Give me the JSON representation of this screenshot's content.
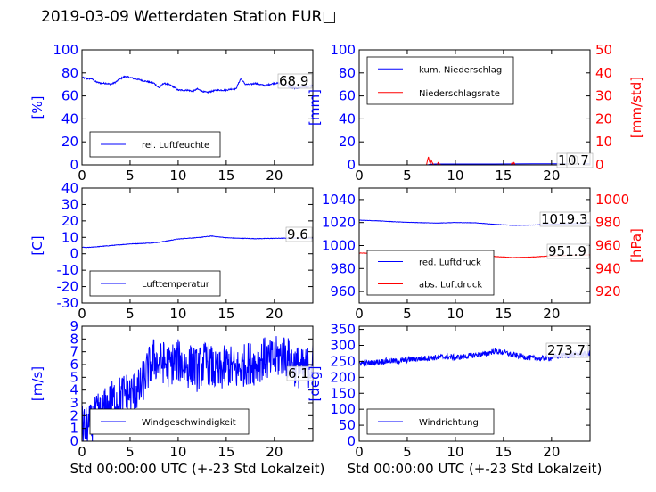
{
  "title": "2019-03-09 Wetterdaten Station FUR□",
  "chart_data": [
    {
      "type": "line",
      "xlabel": "",
      "ylabel": "[%]",
      "xlim": [
        0,
        24
      ],
      "xticks": [
        0,
        5,
        10,
        15,
        20
      ],
      "ylim": [
        0,
        100
      ],
      "yticks": [
        0,
        20,
        40,
        60,
        80,
        100
      ],
      "grid": false,
      "legend": "lower-left",
      "value_label": "68.9",
      "series": [
        {
          "name": "rel. Luftfeuchte",
          "color": "#0000ff",
          "noise": 0.6,
          "x": [
            0,
            0.5,
            1,
            1.5,
            2,
            2.5,
            3,
            3.5,
            4,
            4.5,
            5,
            5.5,
            6,
            6.5,
            7,
            7.5,
            8,
            8.5,
            9,
            9.5,
            10,
            10.5,
            11,
            11.5,
            12,
            12.5,
            13,
            13.5,
            14,
            14.5,
            15,
            15.5,
            16,
            16.5,
            17,
            17.5,
            18,
            18.5,
            19,
            19.5,
            20,
            20.5,
            21,
            21.5,
            22,
            22.5,
            23,
            23.5,
            24
          ],
          "y": [
            76,
            75,
            75,
            72,
            71,
            71,
            70,
            72,
            75,
            77,
            76,
            75,
            74,
            73,
            72,
            71,
            67,
            71,
            70,
            68,
            65,
            65,
            65,
            64,
            66,
            64,
            63,
            64,
            65,
            65,
            65,
            66,
            66,
            75,
            70,
            70,
            71,
            70,
            69,
            70,
            71,
            71,
            70,
            68,
            67,
            67,
            68,
            68,
            69
          ]
        }
      ]
    },
    {
      "type": "line",
      "xlabel": "",
      "ylabel": "[mm]",
      "y2label": "[mm/std]",
      "xlim": [
        0,
        24
      ],
      "xticks": [
        0,
        5,
        10,
        15,
        20
      ],
      "ylim": [
        0,
        100
      ],
      "yticks": [
        0,
        20,
        40,
        60,
        80,
        100
      ],
      "y2lim": [
        0,
        50
      ],
      "y2ticks": [
        0,
        10,
        20,
        30,
        40,
        50
      ],
      "grid": false,
      "legend": "top-left",
      "value_label": "1.0",
      "value_label_2": "0.7",
      "series": [
        {
          "name": "kum. Niederschlag",
          "color": "#0000ff",
          "axis": "left",
          "x": [
            0,
            3,
            5,
            7,
            7.2,
            7.4,
            7.6,
            8,
            10,
            12,
            14,
            16,
            18,
            20,
            22,
            24
          ],
          "y": [
            0,
            0,
            0,
            0,
            0.2,
            0.5,
            0.7,
            0.8,
            0.8,
            0.8,
            0.8,
            0.9,
            1.0,
            1.0,
            1.0,
            1.0
          ]
        },
        {
          "name": "Niederschlagsrate",
          "color": "#ff0000",
          "axis": "right",
          "x": [
            0,
            5,
            7,
            7.1,
            7.2,
            7.3,
            7.4,
            7.5,
            7.6,
            7.7,
            7.8,
            8.1,
            8.2,
            8.4,
            8.5,
            9,
            12,
            15.8,
            15.9,
            16,
            16.1,
            16.2,
            18,
            20,
            22,
            24
          ],
          "y": [
            0,
            0,
            0,
            2,
            3.5,
            1.5,
            0.5,
            2,
            1,
            0.3,
            0,
            0,
            1,
            0.2,
            0,
            0,
            0,
            0,
            1.2,
            0.4,
            1,
            0,
            0,
            0,
            0,
            0
          ]
        }
      ]
    },
    {
      "type": "line",
      "xlabel": "",
      "ylabel": "[C]",
      "xlim": [
        0,
        24
      ],
      "xticks": [
        0,
        5,
        10,
        15,
        20
      ],
      "ylim": [
        -30,
        40
      ],
      "yticks": [
        -30,
        -20,
        -10,
        0,
        10,
        20,
        30,
        40
      ],
      "grid": false,
      "legend": "lower-left",
      "value_label": "9.6",
      "series": [
        {
          "name": "Lufttemperatur",
          "color": "#0000ff",
          "noise": 0.15,
          "x": [
            0,
            0.5,
            1,
            2,
            3,
            4,
            5,
            6,
            7,
            8,
            9,
            10,
            11,
            12,
            13,
            13.5,
            14,
            15,
            16,
            17,
            18,
            19,
            20,
            21,
            22,
            23,
            24
          ],
          "y": [
            4,
            3.8,
            4,
            4.5,
            5,
            5.5,
            6,
            6.2,
            6.5,
            7,
            8,
            9,
            9.5,
            9.8,
            10.5,
            10.8,
            10.4,
            9.8,
            9.5,
            9.4,
            9.2,
            9.3,
            9.4,
            9.5,
            9.6,
            9.5,
            9.6
          ]
        }
      ]
    },
    {
      "type": "line",
      "xlabel": "",
      "ylabel": "",
      "y2label": "[hPa]",
      "xlim": [
        0,
        24
      ],
      "xticks": [
        0,
        5,
        10,
        15,
        20
      ],
      "ylim": [
        950,
        1050
      ],
      "yticks": [
        960,
        980,
        1000,
        1020,
        1040
      ],
      "y2lim": [
        910,
        1010
      ],
      "y2ticks": [
        920,
        940,
        960,
        980,
        1000
      ],
      "grid": false,
      "legend": "lower-left",
      "value_label": "1019.3",
      "value_label_2": "951.9",
      "series": [
        {
          "name": "red. Luftdruck",
          "color": "#0000ff",
          "axis": "left",
          "noise": 0.15,
          "x": [
            0,
            2,
            4,
            6,
            8,
            10,
            12,
            14,
            16,
            18,
            20,
            22,
            24
          ],
          "y": [
            1022,
            1021.5,
            1020.5,
            1020,
            1019.5,
            1020,
            1019.8,
            1018.5,
            1017.5,
            1017.8,
            1018.5,
            1019,
            1019.3
          ]
        },
        {
          "name": "abs. Luftdruck",
          "color": "#ff0000",
          "axis": "right",
          "noise": 0.15,
          "x": [
            0,
            2,
            4,
            6,
            8,
            10,
            12,
            14,
            16,
            18,
            20,
            22,
            24
          ],
          "y": [
            953.5,
            953,
            952.5,
            952,
            951.5,
            952,
            951.5,
            950.5,
            949.5,
            950,
            951,
            951.5,
            951.9
          ]
        }
      ]
    },
    {
      "type": "line",
      "xlabel": "Std 00:00:00 UTC (+-23 Std Lokalzeit)",
      "ylabel": "[m/s]",
      "xlim": [
        0,
        24
      ],
      "xticks": [
        0,
        5,
        10,
        15,
        20
      ],
      "ylim": [
        0,
        9
      ],
      "yticks": [
        0,
        1,
        2,
        3,
        4,
        5,
        6,
        7,
        8,
        9
      ],
      "grid": false,
      "legend": "lower-left",
      "value_label": "6.1",
      "series": [
        {
          "name": "Windgeschwindigkeit",
          "color": "#0000ff",
          "noise": 1.7,
          "x": [
            0,
            0.5,
            1,
            1.5,
            2,
            2.5,
            3,
            3.5,
            4,
            4.5,
            5,
            5.5,
            6,
            6.5,
            7,
            7.5,
            8,
            8.5,
            9,
            9.5,
            10,
            10.5,
            11,
            11.5,
            12,
            12.5,
            13,
            13.5,
            14,
            14.5,
            15,
            15.5,
            16,
            16.5,
            17,
            17.5,
            18,
            18.5,
            19,
            19.5,
            20,
            20.5,
            21,
            21.5,
            22,
            22.5,
            23,
            23.5,
            24
          ],
          "y": [
            1.2,
            1,
            1.3,
            2,
            2.2,
            2.6,
            3,
            3.3,
            3.5,
            3.8,
            3.6,
            3.9,
            4,
            5,
            5.8,
            6.5,
            6,
            6.2,
            5.8,
            6.2,
            6.3,
            6,
            5.8,
            6,
            5.5,
            6,
            6.2,
            5.8,
            5.2,
            5.5,
            6,
            5.8,
            5.5,
            5.8,
            6,
            6.2,
            6,
            6.3,
            6.5,
            6.2,
            6.5,
            6.6,
            6.8,
            6.4,
            6,
            5.8,
            5.5,
            5.8,
            6.1
          ]
        }
      ]
    },
    {
      "type": "line",
      "xlabel": "Std 00:00:00 UTC (+-23 Std Lokalzeit)",
      "ylabel": "[deg]",
      "xlim": [
        0,
        24
      ],
      "xticks": [
        0,
        5,
        10,
        15,
        20
      ],
      "ylim": [
        0,
        360
      ],
      "yticks": [
        0,
        50,
        100,
        150,
        200,
        250,
        300,
        350
      ],
      "grid": false,
      "legend": "lower-left",
      "value_label": "273.7",
      "series": [
        {
          "name": "Windrichtung",
          "color": "#0000ff",
          "noise": 9,
          "x": [
            0,
            1,
            2,
            3,
            4,
            5,
            6,
            7,
            8,
            9,
            10,
            11,
            12,
            13,
            14,
            15,
            16,
            17,
            18,
            19,
            20,
            21,
            22,
            23,
            24
          ],
          "y": [
            245,
            245,
            248,
            252,
            250,
            255,
            258,
            260,
            262,
            265,
            262,
            265,
            270,
            272,
            282,
            278,
            270,
            265,
            260,
            258,
            262,
            268,
            270,
            272,
            273
          ]
        }
      ]
    }
  ]
}
